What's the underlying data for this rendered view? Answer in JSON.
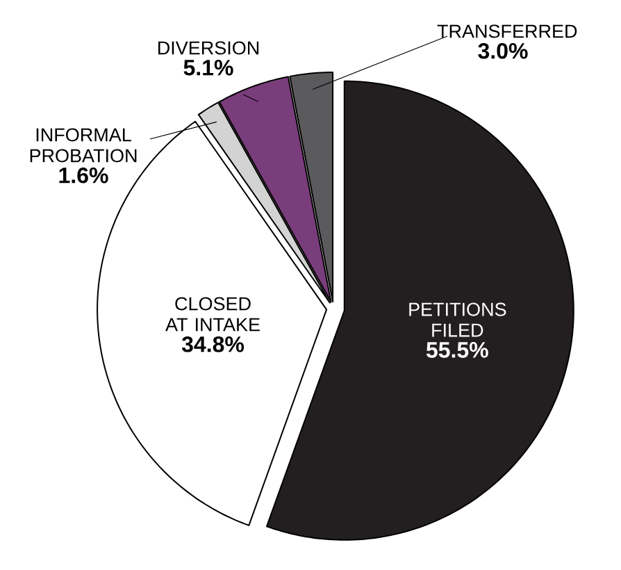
{
  "chart_data": {
    "type": "pie",
    "categories": [
      "PETITIONS FILED",
      "CLOSED AT INTAKE",
      "INFORMAL PROBATION",
      "DIVERSION",
      "TRANSFERRED"
    ],
    "values": [
      55.5,
      34.8,
      1.6,
      5.1,
      3.0
    ],
    "value_labels": [
      "55.5%",
      "34.8%",
      "1.6%",
      "5.1%",
      "3.0%"
    ],
    "colors": [
      "#231f20",
      "#ffffff",
      "#d3d3d3",
      "#7a3d7c",
      "#5b5b5d"
    ]
  }
}
